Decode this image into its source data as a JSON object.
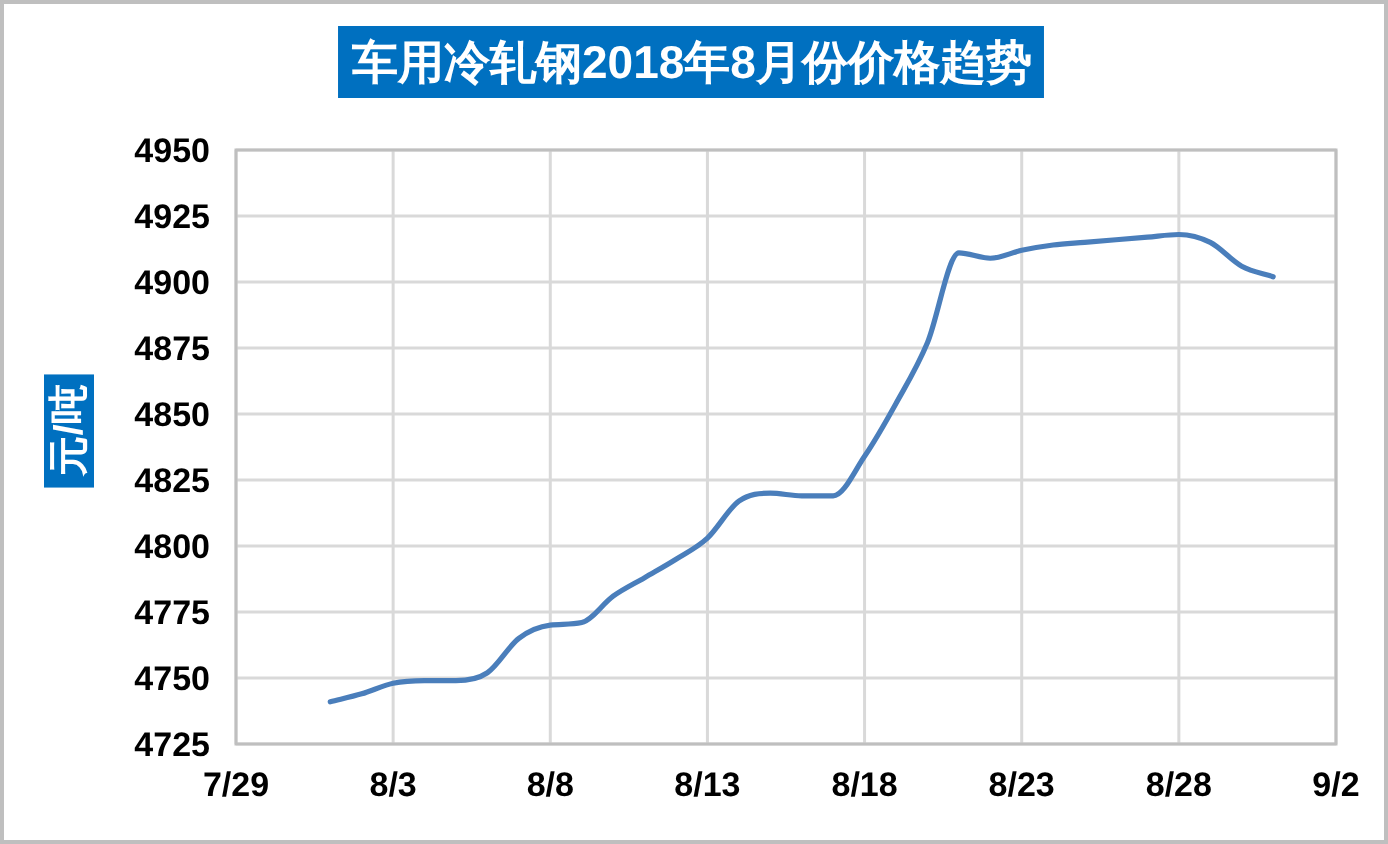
{
  "chart_data": {
    "type": "line",
    "title": "车用冷轧钢2018年8月份价格趋势",
    "ylabel": "元/吨",
    "color": "#4a7ebb",
    "grid": true,
    "x": [
      "--08-01",
      "--08-02",
      "--08-03",
      "--08-04",
      "--08-05",
      "--08-06",
      "--08-07",
      "--08-08",
      "--08-09",
      "--08-10",
      "--08-11",
      "--08-12",
      "--08-13",
      "--08-14",
      "--08-15",
      "--08-16",
      "--08-17",
      "--08-18",
      "--08-19",
      "--08-20",
      "--08-21",
      "--08-22",
      "--08-23",
      "--08-24",
      "--08-25",
      "--08-26",
      "--08-27",
      "--08-28",
      "--08-29",
      "--08-30",
      "--08-31"
    ],
    "values": [
      4741,
      4744,
      4748,
      4749,
      4749,
      4752,
      4765,
      4770,
      4771,
      4781,
      4788,
      4795,
      4803,
      4817,
      4820,
      4819,
      4819,
      4834,
      4854,
      4877,
      4911,
      4909,
      4912,
      4914,
      4915,
      4916,
      4917,
      4918,
      4915,
      4906,
      4902
    ],
    "xlim": [
      "--07-29",
      "--09-02"
    ],
    "xticks": [
      {
        "value": "--07-29",
        "label": "7/29"
      },
      {
        "value": "--08-03",
        "label": "8/3"
      },
      {
        "value": "--08-08",
        "label": "8/8"
      },
      {
        "value": "--08-13",
        "label": "8/13"
      },
      {
        "value": "--08-18",
        "label": "8/18"
      },
      {
        "value": "--08-23",
        "label": "8/23"
      },
      {
        "value": "--08-28",
        "label": "8/28"
      },
      {
        "value": "--09-02",
        "label": "9/2"
      }
    ],
    "ylim": [
      4725,
      4950
    ],
    "yticks": [
      4725,
      4750,
      4775,
      4800,
      4825,
      4850,
      4875,
      4900,
      4925,
      4950
    ]
  }
}
